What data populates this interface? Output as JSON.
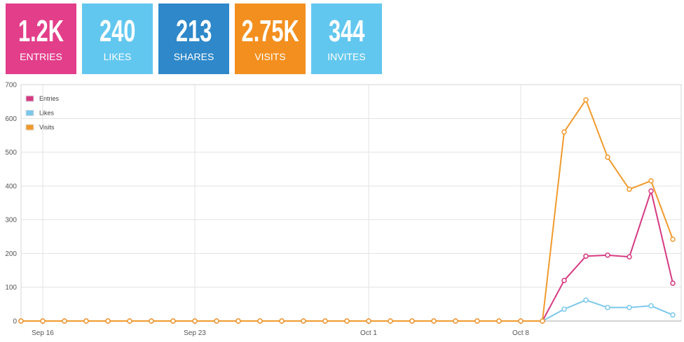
{
  "stats": [
    {
      "value": "1.2K",
      "label": "ENTRIES",
      "color": "#E23E8A"
    },
    {
      "value": "240",
      "label": "LIKES",
      "color": "#62C7EF"
    },
    {
      "value": "213",
      "label": "SHARES",
      "color": "#2E88C9"
    },
    {
      "value": "2.75K",
      "label": "VISITS",
      "color": "#F38F1F"
    },
    {
      "value": "344",
      "label": "INVITES",
      "color": "#62C7EF"
    }
  ],
  "chart_data": {
    "type": "line",
    "x": [
      "Sep 15",
      "Sep 16",
      "Sep 17",
      "Sep 18",
      "Sep 19",
      "Sep 20",
      "Sep 21",
      "Sep 22",
      "Sep 23",
      "Sep 24",
      "Sep 25",
      "Sep 26",
      "Sep 27",
      "Sep 28",
      "Sep 29",
      "Sep 30",
      "Oct 1",
      "Oct 2",
      "Oct 3",
      "Oct 4",
      "Oct 5",
      "Oct 6",
      "Oct 7",
      "Oct 8",
      "Oct 9",
      "Oct 10",
      "Oct 11",
      "Oct 12",
      "Oct 13",
      "Oct 14",
      "Oct 15"
    ],
    "xticks": [
      "Sep 16",
      "Sep 23",
      "Oct 1",
      "Oct 8"
    ],
    "yticks": [
      0,
      100,
      200,
      300,
      400,
      500,
      600,
      700
    ],
    "ylim": [
      0,
      700
    ],
    "grid": true,
    "legend": "top-left",
    "series": [
      {
        "name": "Entries",
        "color": "#D63A82",
        "values": [
          0,
          0,
          0,
          0,
          0,
          0,
          0,
          0,
          0,
          0,
          0,
          0,
          0,
          0,
          0,
          0,
          0,
          0,
          0,
          0,
          0,
          0,
          0,
          0,
          0,
          120,
          192,
          195,
          190,
          385,
          112
        ]
      },
      {
        "name": "Likes",
        "color": "#7CC8EB",
        "values": [
          0,
          0,
          0,
          0,
          0,
          0,
          0,
          0,
          0,
          0,
          0,
          0,
          0,
          0,
          0,
          0,
          0,
          0,
          0,
          0,
          0,
          0,
          0,
          0,
          0,
          35,
          62,
          40,
          40,
          45,
          18
        ]
      },
      {
        "name": "Visits",
        "color": "#F09A2C",
        "values": [
          0,
          0,
          0,
          0,
          0,
          0,
          0,
          0,
          0,
          0,
          0,
          0,
          0,
          0,
          0,
          0,
          0,
          0,
          0,
          0,
          0,
          0,
          0,
          0,
          0,
          560,
          655,
          485,
          390,
          415,
          242
        ]
      }
    ]
  }
}
